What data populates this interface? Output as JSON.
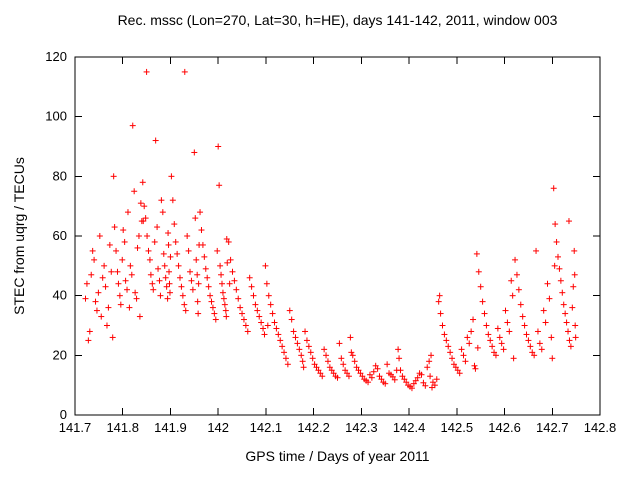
{
  "chart_data": {
    "type": "scatter",
    "title": "Rec. mssc (Lon=270, Lat=30, h=HE), days 141-142, 2011, window 003",
    "xlabel": "GPS time / Days of year 2011",
    "ylabel": "STEC from uqrg / TECUs",
    "xlim": [
      141.7,
      142.8
    ],
    "ylim": [
      0,
      120
    ],
    "xtick_values": [
      141.7,
      141.8,
      141.9,
      142.0,
      142.1,
      142.2,
      142.3,
      142.4,
      142.5,
      142.6,
      142.7,
      142.8
    ],
    "xtick_labels": [
      "141.7",
      "141.8",
      "141.9",
      "142",
      "142.1",
      "142.2",
      "142.3",
      "142.4",
      "142.5",
      "142.6",
      "142.7",
      "142.8"
    ],
    "ytick_values": [
      0,
      20,
      40,
      60,
      80,
      100,
      120
    ],
    "ytick_labels": [
      "0",
      "20",
      "40",
      "60",
      "80",
      "100",
      "120"
    ],
    "grid": false,
    "legend": "none",
    "marker": "plus",
    "marker_color": "#ff0000",
    "points": [
      [
        141.722,
        39
      ],
      [
        141.725,
        44
      ],
      [
        141.728,
        25
      ],
      [
        141.731,
        28
      ],
      [
        141.734,
        47
      ],
      [
        141.737,
        55
      ],
      [
        141.74,
        52
      ],
      [
        141.743,
        38
      ],
      [
        141.746,
        35
      ],
      [
        141.749,
        41
      ],
      [
        141.752,
        60
      ],
      [
        141.755,
        33
      ],
      [
        141.758,
        46
      ],
      [
        141.761,
        50
      ],
      [
        141.764,
        43
      ],
      [
        141.767,
        30
      ],
      [
        141.77,
        36
      ],
      [
        141.773,
        57
      ],
      [
        141.776,
        48
      ],
      [
        141.779,
        26
      ],
      [
        141.781,
        80
      ],
      [
        141.783,
        63
      ],
      [
        141.786,
        55
      ],
      [
        141.789,
        48
      ],
      [
        141.791,
        44
      ],
      [
        141.794,
        40
      ],
      [
        141.796,
        37
      ],
      [
        141.799,
        52
      ],
      [
        141.801,
        62
      ],
      [
        141.804,
        58
      ],
      [
        141.806,
        45
      ],
      [
        141.809,
        42
      ],
      [
        141.811,
        68
      ],
      [
        141.814,
        36
      ],
      [
        141.816,
        50
      ],
      [
        141.819,
        47
      ],
      [
        141.821,
        97
      ],
      [
        141.824,
        75
      ],
      [
        141.826,
        41
      ],
      [
        141.829,
        39
      ],
      [
        141.831,
        56
      ],
      [
        141.834,
        60
      ],
      [
        141.836,
        33
      ],
      [
        141.838,
        71
      ],
      [
        141.84,
        65
      ],
      [
        141.842,
        78
      ],
      [
        141.843,
        65
      ],
      [
        141.845,
        70
      ],
      [
        141.848,
        66
      ],
      [
        141.85,
        115
      ],
      [
        141.851,
        60
      ],
      [
        141.854,
        55
      ],
      [
        141.857,
        52
      ],
      [
        141.859,
        47
      ],
      [
        141.862,
        44
      ],
      [
        141.864,
        42
      ],
      [
        141.867,
        58
      ],
      [
        141.869,
        92
      ],
      [
        141.872,
        63
      ],
      [
        141.874,
        49
      ],
      [
        141.877,
        45
      ],
      [
        141.879,
        40
      ],
      [
        141.881,
        72
      ],
      [
        141.884,
        68
      ],
      [
        141.886,
        54
      ],
      [
        141.888,
        50
      ],
      [
        141.89,
        46
      ],
      [
        141.892,
        43
      ],
      [
        141.894,
        39
      ],
      [
        141.895,
        61
      ],
      [
        141.896,
        57
      ],
      [
        141.897,
        48
      ],
      [
        141.898,
        44
      ],
      [
        141.899,
        41
      ],
      [
        141.9,
        53
      ],
      [
        141.902,
        80
      ],
      [
        141.905,
        72
      ],
      [
        141.908,
        64
      ],
      [
        141.911,
        58
      ],
      [
        141.914,
        54
      ],
      [
        141.917,
        50
      ],
      [
        141.92,
        46
      ],
      [
        141.923,
        43
      ],
      [
        141.926,
        40
      ],
      [
        141.929,
        37
      ],
      [
        141.93,
        115
      ],
      [
        141.932,
        35
      ],
      [
        141.935,
        60
      ],
      [
        141.938,
        55
      ],
      [
        141.941,
        48
      ],
      [
        141.944,
        45
      ],
      [
        141.947,
        42
      ],
      [
        141.95,
        88
      ],
      [
        141.952,
        66
      ],
      [
        141.954,
        52
      ],
      [
        141.956,
        47
      ],
      [
        141.957,
        38
      ],
      [
        141.958,
        34
      ],
      [
        141.959,
        44
      ],
      [
        141.96,
        57
      ],
      [
        141.962,
        68
      ],
      [
        141.965,
        62
      ],
      [
        141.968,
        57
      ],
      [
        141.971,
        53
      ],
      [
        141.974,
        49
      ],
      [
        141.977,
        46
      ],
      [
        141.98,
        43
      ],
      [
        141.983,
        40
      ],
      [
        141.986,
        38
      ],
      [
        141.989,
        36
      ],
      [
        141.992,
        34
      ],
      [
        141.995,
        32
      ],
      [
        141.998,
        55
      ],
      [
        142.0,
        90
      ],
      [
        142.002,
        77
      ],
      [
        142.004,
        50
      ],
      [
        142.006,
        47
      ],
      [
        142.008,
        44
      ],
      [
        142.01,
        41
      ],
      [
        142.012,
        39
      ],
      [
        142.014,
        37
      ],
      [
        142.016,
        35
      ],
      [
        142.017,
        33
      ],
      [
        142.018,
        59
      ],
      [
        142.019,
        51
      ],
      [
        142.022,
        58
      ],
      [
        142.024,
        44
      ],
      [
        142.026,
        52
      ],
      [
        142.03,
        48
      ],
      [
        142.034,
        45
      ],
      [
        142.038,
        42
      ],
      [
        142.042,
        39
      ],
      [
        142.046,
        36
      ],
      [
        142.05,
        34
      ],
      [
        142.054,
        32
      ],
      [
        142.058,
        30
      ],
      [
        142.062,
        28
      ],
      [
        142.066,
        46
      ],
      [
        142.07,
        43
      ],
      [
        142.074,
        40
      ],
      [
        142.078,
        37
      ],
      [
        142.082,
        35
      ],
      [
        142.086,
        33
      ],
      [
        142.09,
        31
      ],
      [
        142.094,
        29
      ],
      [
        142.097,
        27
      ],
      [
        142.099,
        50
      ],
      [
        142.102,
        44
      ],
      [
        142.104,
        30
      ],
      [
        142.106,
        40
      ],
      [
        142.11,
        37
      ],
      [
        142.114,
        34
      ],
      [
        142.118,
        31
      ],
      [
        142.122,
        29
      ],
      [
        142.126,
        27
      ],
      [
        142.13,
        25
      ],
      [
        142.134,
        23
      ],
      [
        142.138,
        21
      ],
      [
        142.142,
        19
      ],
      [
        142.146,
        17
      ],
      [
        142.15,
        35
      ],
      [
        142.154,
        32
      ],
      [
        142.158,
        28
      ],
      [
        142.162,
        26
      ],
      [
        142.166,
        24
      ],
      [
        142.17,
        22
      ],
      [
        142.174,
        20
      ],
      [
        142.177,
        18
      ],
      [
        142.179,
        16
      ],
      [
        142.182,
        28
      ],
      [
        142.186,
        25
      ],
      [
        142.19,
        23
      ],
      [
        142.194,
        21
      ],
      [
        142.198,
        19
      ],
      [
        142.202,
        17
      ],
      [
        142.206,
        16
      ],
      [
        142.21,
        15
      ],
      [
        142.214,
        14
      ],
      [
        142.218,
        13
      ],
      [
        142.222,
        22
      ],
      [
        142.226,
        20
      ],
      [
        142.23,
        18
      ],
      [
        142.234,
        16
      ],
      [
        142.238,
        15
      ],
      [
        142.242,
        14
      ],
      [
        142.246,
        13
      ],
      [
        142.25,
        12.5
      ],
      [
        142.254,
        24
      ],
      [
        142.258,
        19
      ],
      [
        142.262,
        17
      ],
      [
        142.266,
        15
      ],
      [
        142.27,
        14
      ],
      [
        142.274,
        13
      ],
      [
        142.277,
        26
      ],
      [
        142.279,
        21
      ],
      [
        142.282,
        20
      ],
      [
        142.286,
        18
      ],
      [
        142.29,
        16
      ],
      [
        142.294,
        15
      ],
      [
        142.298,
        14
      ],
      [
        142.302,
        13
      ],
      [
        142.306,
        12
      ],
      [
        142.31,
        11.5
      ],
      [
        142.314,
        11
      ],
      [
        142.318,
        13.5
      ],
      [
        142.322,
        12.5
      ],
      [
        142.326,
        14.5
      ],
      [
        142.33,
        16.5
      ],
      [
        142.334,
        15.5
      ],
      [
        142.338,
        13
      ],
      [
        142.342,
        12
      ],
      [
        142.346,
        11
      ],
      [
        142.35,
        10.5
      ],
      [
        142.354,
        17
      ],
      [
        142.358,
        14
      ],
      [
        142.362,
        13.5
      ],
      [
        142.366,
        12.8
      ],
      [
        142.37,
        11.8
      ],
      [
        142.374,
        15
      ],
      [
        142.377,
        22
      ],
      [
        142.379,
        19
      ],
      [
        142.382,
        15
      ],
      [
        142.386,
        13
      ],
      [
        142.39,
        12
      ],
      [
        142.394,
        11
      ],
      [
        142.398,
        10
      ],
      [
        142.402,
        9.5
      ],
      [
        142.406,
        9
      ],
      [
        142.41,
        10.5
      ],
      [
        142.414,
        11.5
      ],
      [
        142.418,
        12.5
      ],
      [
        142.422,
        14
      ],
      [
        142.426,
        13.5
      ],
      [
        142.43,
        10.8
      ],
      [
        142.434,
        9.8
      ],
      [
        142.438,
        16
      ],
      [
        142.442,
        18
      ],
      [
        142.444,
        13
      ],
      [
        142.446,
        20
      ],
      [
        142.448,
        9.2
      ],
      [
        142.45,
        11
      ],
      [
        142.454,
        10
      ],
      [
        142.458,
        12
      ],
      [
        142.462,
        38
      ],
      [
        142.464,
        40
      ],
      [
        142.466,
        34
      ],
      [
        142.47,
        30
      ],
      [
        142.474,
        27
      ],
      [
        142.478,
        25
      ],
      [
        142.482,
        23
      ],
      [
        142.486,
        21
      ],
      [
        142.49,
        19
      ],
      [
        142.494,
        17
      ],
      [
        142.498,
        16
      ],
      [
        142.502,
        15
      ],
      [
        142.506,
        14
      ],
      [
        142.51,
        22
      ],
      [
        142.514,
        20
      ],
      [
        142.518,
        18
      ],
      [
        142.522,
        26
      ],
      [
        142.526,
        24
      ],
      [
        142.53,
        28
      ],
      [
        142.534,
        32
      ],
      [
        142.537,
        16.5
      ],
      [
        142.539,
        15.5
      ],
      [
        142.542,
        54
      ],
      [
        142.544,
        22.5
      ],
      [
        142.546,
        48
      ],
      [
        142.55,
        43
      ],
      [
        142.554,
        38
      ],
      [
        142.558,
        34
      ],
      [
        142.562,
        30
      ],
      [
        142.566,
        27
      ],
      [
        142.57,
        25
      ],
      [
        142.574,
        23
      ],
      [
        142.578,
        21
      ],
      [
        142.582,
        20
      ],
      [
        142.586,
        29
      ],
      [
        142.59,
        26
      ],
      [
        142.594,
        24
      ],
      [
        142.598,
        22
      ],
      [
        142.602,
        35
      ],
      [
        142.606,
        31
      ],
      [
        142.61,
        28
      ],
      [
        142.614,
        45
      ],
      [
        142.617,
        40
      ],
      [
        142.619,
        19
      ],
      [
        142.622,
        52
      ],
      [
        142.626,
        47
      ],
      [
        142.63,
        42
      ],
      [
        142.634,
        37
      ],
      [
        142.638,
        33
      ],
      [
        142.642,
        30
      ],
      [
        142.646,
        27
      ],
      [
        142.65,
        25
      ],
      [
        142.654,
        23
      ],
      [
        142.658,
        21
      ],
      [
        142.662,
        20
      ],
      [
        142.666,
        55
      ],
      [
        142.67,
        28
      ],
      [
        142.674,
        24
      ],
      [
        142.678,
        22
      ],
      [
        142.682,
        35
      ],
      [
        142.686,
        31
      ],
      [
        142.69,
        44
      ],
      [
        142.694,
        39
      ],
      [
        142.698,
        26
      ],
      [
        142.7,
        19
      ],
      [
        142.703,
        76
      ],
      [
        142.705,
        50
      ],
      [
        142.706,
        64
      ],
      [
        142.709,
        58
      ],
      [
        142.712,
        53
      ],
      [
        142.715,
        49
      ],
      [
        142.718,
        45
      ],
      [
        142.721,
        41
      ],
      [
        142.724,
        37
      ],
      [
        142.727,
        34
      ],
      [
        142.73,
        31
      ],
      [
        142.733,
        28
      ],
      [
        142.735,
        65
      ],
      [
        142.736,
        25
      ],
      [
        142.739,
        23
      ],
      [
        142.742,
        36
      ],
      [
        142.744,
        43
      ],
      [
        142.746,
        55
      ],
      [
        142.747,
        47
      ],
      [
        142.748,
        30
      ],
      [
        142.749,
        26
      ]
    ]
  }
}
